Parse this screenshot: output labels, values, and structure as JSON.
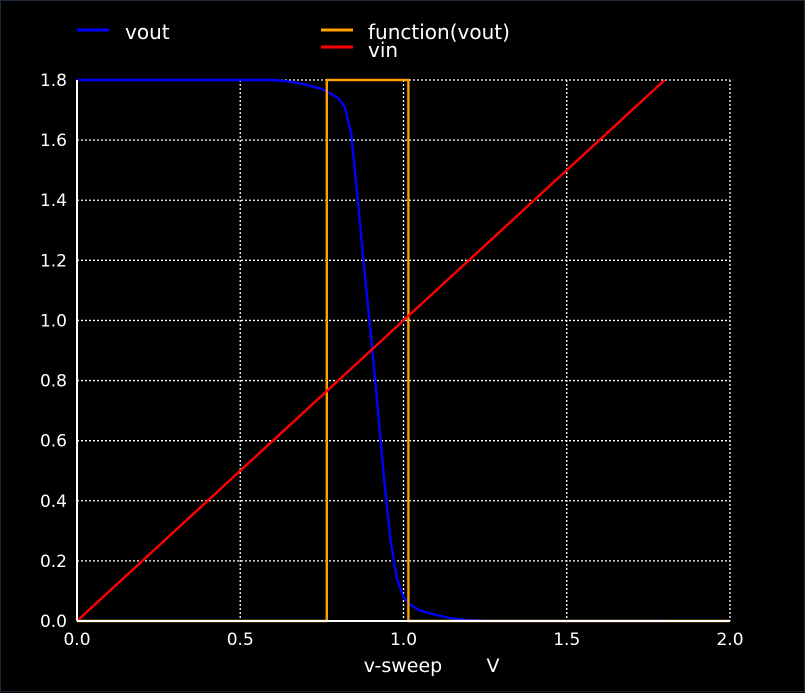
{
  "chart_data": {
    "type": "line",
    "xlabel": "v-sweep",
    "xunit": "V",
    "xlim": [
      0,
      2.0
    ],
    "ylim": [
      0,
      1.8
    ],
    "xticks": [
      "0.0",
      "0.5",
      "1.0",
      "1.5",
      "2.0"
    ],
    "yticks": [
      "0.0",
      "0.2",
      "0.4",
      "0.6",
      "0.8",
      "1.0",
      "1.2",
      "1.4",
      "1.6",
      "1.8"
    ],
    "grid": true,
    "legend": "top",
    "series": [
      {
        "name": "vout",
        "color": "#0000ff",
        "x": [
          0,
          0.5,
          0.6,
          0.65,
          0.7,
          0.75,
          0.8,
          0.82,
          0.84,
          0.86,
          0.88,
          0.9,
          0.92,
          0.94,
          0.96,
          0.98,
          1.0,
          1.02,
          1.05,
          1.1,
          1.15,
          1.2,
          1.27,
          1.5,
          1.8
        ],
        "y": [
          1.8,
          1.8,
          1.8,
          1.795,
          1.785,
          1.77,
          1.74,
          1.71,
          1.62,
          1.4,
          1.17,
          0.95,
          0.72,
          0.48,
          0.27,
          0.14,
          0.08,
          0.055,
          0.035,
          0.02,
          0.008,
          0.003,
          0,
          0,
          0
        ]
      },
      {
        "name": "function(vout)",
        "color": "#ffa000",
        "x": [
          0,
          0.765,
          0.765,
          1.015,
          1.015,
          2.0
        ],
        "y": [
          0,
          0,
          1.8,
          1.8,
          0,
          0
        ]
      },
      {
        "name": "vin",
        "color": "#ff0000",
        "x": [
          0,
          1.8
        ],
        "y": [
          0,
          1.8
        ]
      }
    ]
  }
}
